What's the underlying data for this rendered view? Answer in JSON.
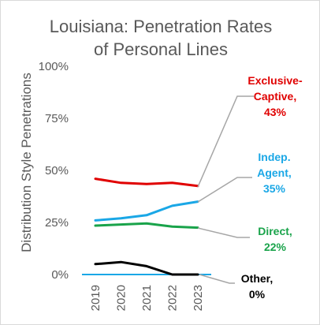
{
  "chart_data": {
    "type": "line",
    "title_lines": [
      "Louisiana: Penetration Rates",
      "of Personal Lines"
    ],
    "xlabel": "",
    "ylabel": "Distribution Style Penetrations",
    "x": [
      "2019",
      "2020",
      "2021",
      "2022",
      "2023"
    ],
    "ylim": [
      0,
      100
    ],
    "yticks": [
      0,
      25,
      50,
      75,
      100
    ],
    "ytick_labels": [
      "0%",
      "25%",
      "50%",
      "75%",
      "100%"
    ],
    "grid": false,
    "legend": "none",
    "series": [
      {
        "name": "Exclusive-Captive",
        "label_lines": [
          "Exclusive-",
          "Captive,",
          "43%"
        ],
        "color": "#e00000",
        "values": [
          46,
          44,
          43.5,
          44,
          42.5
        ]
      },
      {
        "name": "Indep. Agent",
        "label_lines": [
          "Indep.",
          "Agent,",
          "35%"
        ],
        "color": "#1aa7e6",
        "values": [
          26,
          27,
          28.5,
          33,
          35
        ]
      },
      {
        "name": "Direct",
        "label_lines": [
          "Direct,",
          "22%"
        ],
        "color": "#19a34a",
        "values": [
          23.5,
          24,
          24.5,
          23,
          22.5
        ]
      },
      {
        "name": "Other",
        "label_lines": [
          "Other,",
          "0%"
        ],
        "color": "#000000",
        "values": [
          5,
          6,
          4,
          0,
          0
        ]
      }
    ]
  }
}
